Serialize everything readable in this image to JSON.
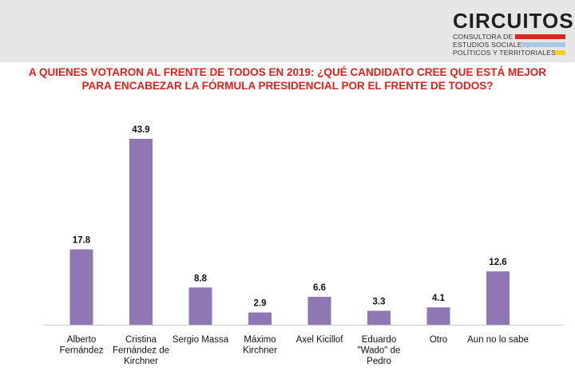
{
  "logo": {
    "title": "CIRCUITOS",
    "line1": "CONSULTORA DE",
    "line2": "ESTUDIOS SOCIALES,",
    "line3": "POLÍTICOS Y TERRITORIALES",
    "colors": [
      "#e1231b",
      "#a8c8e8",
      "#f2d21b"
    ]
  },
  "chart_data": {
    "type": "bar",
    "title_line1": "A QUIENES VOTARON AL FRENTE DE TODOS EN 2019: ¿QUÉ CANDIDATO CREE QUE ESTÁ MEJOR",
    "title_line2": "PARA ENCABEZAR LA FÓRMULA PRESIDENCIAL POR EL FRENTE DE TODOS?",
    "categories": [
      [
        "Alberto",
        "Fernández"
      ],
      [
        "Cristina",
        "Fernández de",
        "Kirchner"
      ],
      [
        "Sergio Massa"
      ],
      [
        "Máximo",
        "Kirchner"
      ],
      [
        "Axel Kicillof"
      ],
      [
        "Eduardo",
        "\"Wado\" de",
        "Pedro"
      ],
      [
        "Otro"
      ],
      [
        "Aun no lo sabe"
      ]
    ],
    "values": [
      17.8,
      43.9,
      8.8,
      2.9,
      6.6,
      3.3,
      4.1,
      12.6
    ],
    "value_labels": [
      "17.8",
      "43.9",
      "8.8",
      "2.9",
      "6.6",
      "3.3",
      "4.1",
      "12.6"
    ],
    "bar_color": "#8e77b3",
    "ylim": [
      0,
      43.9
    ],
    "grid": false,
    "legend": "none"
  }
}
